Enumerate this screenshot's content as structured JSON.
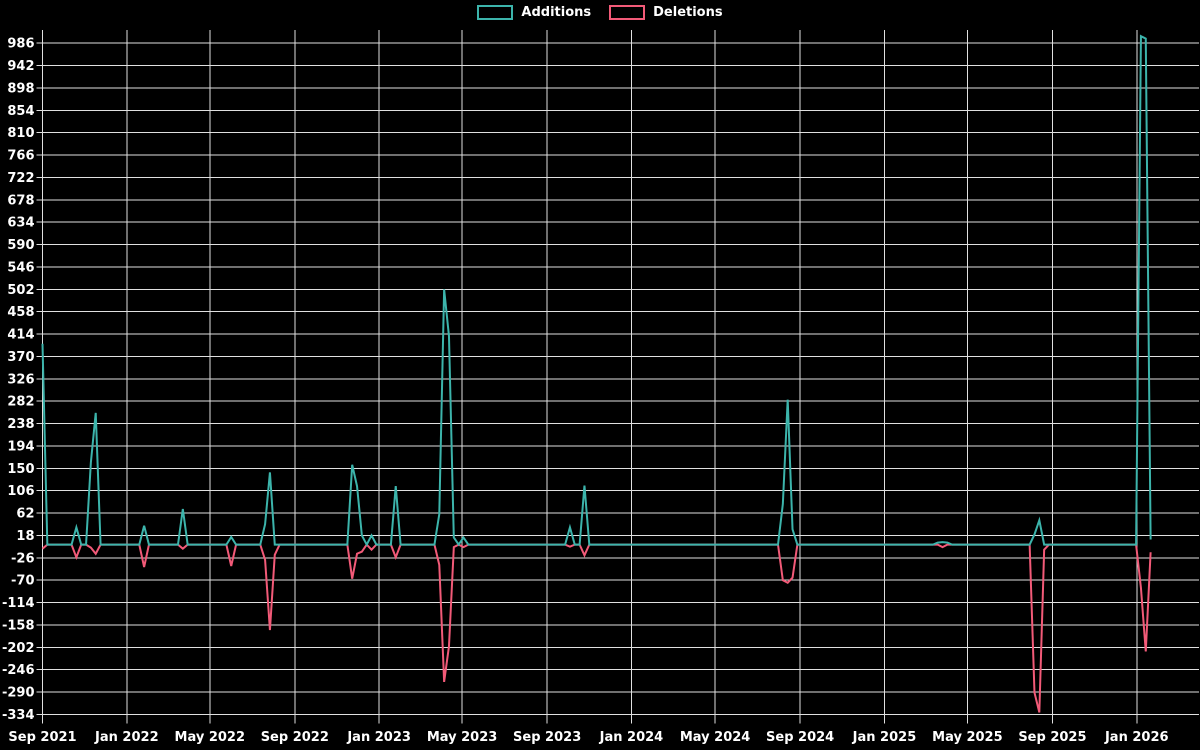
{
  "legend": {
    "items": [
      {
        "label": "Additions",
        "color": "#3cb4ab"
      },
      {
        "label": "Deletions",
        "color": "#f25a78"
      }
    ]
  },
  "chart_data": {
    "type": "line",
    "title": "",
    "xlabel": "",
    "ylabel": "",
    "grid": true,
    "legend_position": "top-center",
    "background_color": "#000000",
    "grid_color": "#e0e0e0",
    "text_color": "#ffffff",
    "x_axis": {
      "unit": "weeks since Sep 2021",
      "domain_weeks": 239,
      "series_weeks": 230,
      "ticks": [
        {
          "label": "Sep 2021",
          "week": 0
        },
        {
          "label": "Jan 2022",
          "week": 17.43
        },
        {
          "label": "May 2022",
          "week": 34.57
        },
        {
          "label": "Sep 2022",
          "week": 52.14
        },
        {
          "label": "Jan 2023",
          "week": 69.57
        },
        {
          "label": "May 2023",
          "week": 86.71
        },
        {
          "label": "Sep 2023",
          "week": 104.29
        },
        {
          "label": "Jan 2024",
          "week": 121.71
        },
        {
          "label": "May 2024",
          "week": 139.0
        },
        {
          "label": "Sep 2024",
          "week": 156.57
        },
        {
          "label": "Jan 2025",
          "week": 174.0
        },
        {
          "label": "May 2025",
          "week": 191.14
        },
        {
          "label": "Sep 2025",
          "week": 208.71
        },
        {
          "label": "Jan 2026",
          "week": 226.14
        }
      ]
    },
    "y_axis": {
      "min": -334,
      "max": 986,
      "step": 44,
      "render_range": [
        -340,
        1012
      ],
      "ticks": [
        -334,
        -290,
        -246,
        -202,
        -158,
        -114,
        -70,
        -26,
        18,
        62,
        106,
        150,
        194,
        238,
        282,
        326,
        370,
        414,
        458,
        502,
        546,
        590,
        634,
        678,
        722,
        766,
        810,
        854,
        898,
        942,
        986
      ]
    },
    "series": [
      {
        "name": "Additions",
        "color": "#3cb4ab",
        "default_value": 0,
        "points": [
          [
            0,
            395
          ],
          [
            7,
            34
          ],
          [
            10,
            162
          ],
          [
            11,
            259
          ],
          [
            21,
            37
          ],
          [
            29,
            70
          ],
          [
            39,
            15
          ],
          [
            46,
            40
          ],
          [
            47,
            142
          ],
          [
            64,
            157
          ],
          [
            65,
            115
          ],
          [
            66,
            18
          ],
          [
            68,
            18
          ],
          [
            73,
            115
          ],
          [
            82,
            60
          ],
          [
            83,
            502
          ],
          [
            84,
            410
          ],
          [
            85,
            14
          ],
          [
            87,
            14
          ],
          [
            109,
            34
          ],
          [
            112,
            116
          ],
          [
            153,
            80
          ],
          [
            154,
            285
          ],
          [
            155,
            30
          ],
          [
            185,
            4
          ],
          [
            186,
            5
          ],
          [
            187,
            4
          ],
          [
            205,
            20
          ],
          [
            206,
            48
          ],
          [
            227,
            1000
          ],
          [
            228,
            995
          ],
          [
            229,
            10
          ]
        ]
      },
      {
        "name": "Deletions",
        "color": "#f25a78",
        "default_value": 0,
        "points": [
          [
            0,
            -8
          ],
          [
            7,
            -25
          ],
          [
            10,
            -6
          ],
          [
            11,
            -18
          ],
          [
            21,
            -44
          ],
          [
            29,
            -8
          ],
          [
            39,
            -42
          ],
          [
            46,
            -30
          ],
          [
            47,
            -168
          ],
          [
            48,
            -20
          ],
          [
            64,
            -67
          ],
          [
            65,
            -18
          ],
          [
            66,
            -14
          ],
          [
            68,
            -10
          ],
          [
            73,
            -25
          ],
          [
            82,
            -40
          ],
          [
            83,
            -270
          ],
          [
            84,
            -200
          ],
          [
            85,
            -5
          ],
          [
            87,
            -5
          ],
          [
            109,
            -4
          ],
          [
            112,
            -21
          ],
          [
            153,
            -70
          ],
          [
            154,
            -75
          ],
          [
            155,
            -65
          ],
          [
            186,
            -5
          ],
          [
            205,
            -291
          ],
          [
            206,
            -330
          ],
          [
            207,
            -10
          ],
          [
            227,
            -85
          ],
          [
            228,
            -210
          ],
          [
            229,
            -15
          ]
        ]
      }
    ]
  }
}
